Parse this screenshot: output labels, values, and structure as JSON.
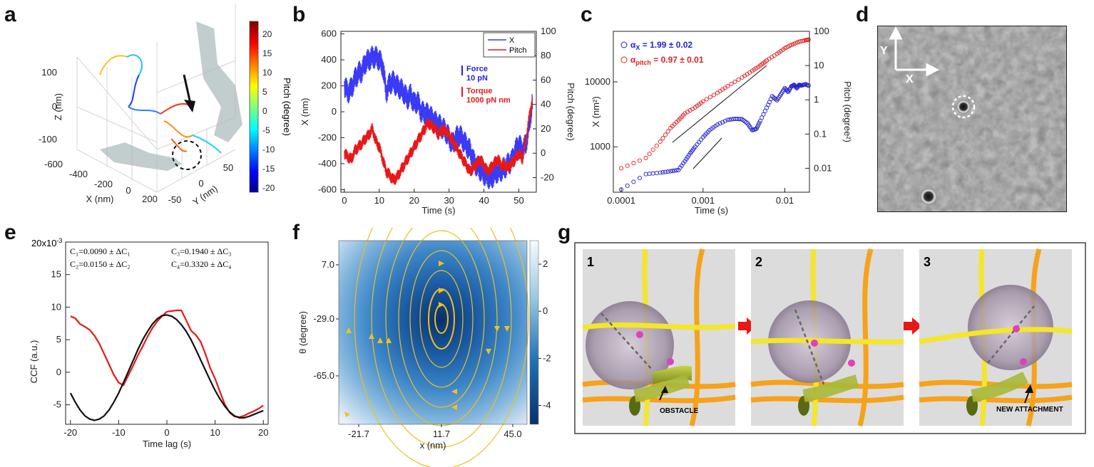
{
  "panels": {
    "a": {
      "letter": "a",
      "colorbar": {
        "ticks": [
          "20",
          "15",
          "10",
          "5",
          "0",
          "-5",
          "-10",
          "-15",
          "-20"
        ],
        "label": "Pitch (degree)"
      },
      "axes": {
        "z_label": "Z (nm)",
        "z_ticks": [
          "100",
          "0",
          "-100"
        ],
        "x_label": "X (nm)",
        "x_ticks": [
          "-600",
          "-400",
          "-200",
          "0",
          "200"
        ],
        "y_label": "Y (nm)",
        "y_ticks": [
          "-50",
          "0",
          "50"
        ]
      }
    },
    "b": {
      "letter": "b",
      "legend": [
        "X",
        "Pitch"
      ],
      "scale_force": [
        "Force",
        "10 pN"
      ],
      "scale_torque": [
        "Torque",
        "1000 pN nm"
      ]
    },
    "c": {
      "letter": "c",
      "alpha_x": {
        "symbol": "α",
        "sub": "X",
        "text": " = 1.99 ± 0.02"
      },
      "alpha_pitch": {
        "symbol": "α",
        "sub": "pitch",
        "text": " = 0.97 ± 0.01"
      }
    },
    "d": {
      "letter": "d",
      "axis_y": "Y",
      "axis_x": "X"
    },
    "e": {
      "letter": "e",
      "scale_note": "20x10",
      "scale_exp": "-3",
      "coefs": [
        "C₁=0.0090 ± ΔC₁",
        "C₃=0.1940 ± ΔC₃",
        "C₂=0.0150 ± ΔC₂",
        "C₄=0.3320 ± ΔC₄"
      ]
    },
    "f": {
      "letter": "f",
      "colorbar_ticks": [
        "2",
        "0",
        "-2",
        "-4"
      ]
    },
    "g": {
      "letter": "g",
      "steps": [
        "1",
        "2",
        "3"
      ],
      "labels": {
        "obstacle": "OBSTACLE",
        "new_attachment": "NEW ATTACHMENT"
      }
    }
  },
  "colors": {
    "blue": "#3b3bf5",
    "red": "#e81818",
    "yellow": "#f4e62a",
    "orange": "#f6a21a"
  },
  "chart_data": [
    {
      "panel": "b",
      "type": "line",
      "title": "",
      "xlabel": "Time (s)",
      "ylabel": "X (nm)",
      "ylabel_right": "Pitch (degree)",
      "xlim": [
        -1,
        55
      ],
      "ylim": [
        -620,
        620
      ],
      "ylim_right": [
        -32,
        100
      ],
      "x_ticks": [
        0,
        10,
        20,
        30,
        40,
        50
      ],
      "y_ticks": [
        -600,
        -400,
        -200,
        0,
        200,
        400,
        600
      ],
      "y_ticks_right": [
        -20,
        0,
        20,
        40,
        60,
        80,
        100
      ],
      "series": [
        {
          "name": "X",
          "axis": "left",
          "color": "#3b3bf5",
          "x": [
            0,
            1,
            2,
            3,
            4,
            5,
            6,
            7,
            8,
            9,
            10,
            11,
            12,
            13,
            14,
            15,
            16,
            17,
            18,
            19,
            20,
            21,
            22,
            23,
            24,
            25,
            26,
            27,
            28,
            29,
            30,
            31,
            32,
            33,
            34,
            35,
            36,
            37,
            38,
            39,
            40,
            41,
            42,
            43,
            44,
            45,
            46,
            47,
            48,
            49,
            50,
            51,
            52,
            53,
            54
          ],
          "values": [
            200,
            150,
            180,
            250,
            300,
            310,
            380,
            400,
            420,
            420,
            400,
            350,
            150,
            220,
            230,
            200,
            180,
            150,
            100,
            130,
            60,
            80,
            0,
            -10,
            -20,
            -50,
            -80,
            -100,
            -120,
            -150,
            -200,
            -250,
            -200,
            -180,
            -220,
            -260,
            -300,
            -380,
            -420,
            -450,
            -480,
            -500,
            -520,
            -480,
            -460,
            -450,
            -430,
            -400,
            -380,
            -300,
            -250,
            -300,
            -250,
            -100,
            100
          ],
          "band": 90
        },
        {
          "name": "Pitch",
          "axis": "right",
          "color": "#e81818",
          "x": [
            0,
            1,
            2,
            3,
            4,
            5,
            6,
            7,
            8,
            9,
            10,
            11,
            12,
            13,
            14,
            15,
            16,
            17,
            18,
            19,
            20,
            21,
            22,
            23,
            24,
            25,
            26,
            27,
            28,
            29,
            30,
            31,
            32,
            33,
            34,
            35,
            36,
            37,
            38,
            39,
            40,
            41,
            42,
            43,
            44,
            45,
            46,
            47,
            48,
            49,
            50,
            51,
            52,
            53,
            54
          ],
          "values": [
            0,
            -3,
            -5,
            2,
            5,
            8,
            12,
            15,
            20,
            10,
            5,
            -5,
            -15,
            -18,
            -22,
            -20,
            -15,
            -10,
            -5,
            0,
            5,
            10,
            15,
            20,
            25,
            22,
            20,
            15,
            20,
            18,
            15,
            10,
            5,
            0,
            -5,
            -10,
            -15,
            -12,
            -8,
            -5,
            -10,
            -15,
            -12,
            -8,
            -5,
            -10,
            -10,
            -12,
            -8,
            -5,
            0,
            -5,
            10,
            30,
            45
          ],
          "band": 5
        }
      ]
    },
    {
      "panel": "c",
      "type": "scatter",
      "xlabel": "Time (s)",
      "ylabel": "X (nm²)",
      "ylabel_right": "Pitch (degree²)",
      "xscale": "log",
      "yscale": "log",
      "xlim": [
        8e-05,
        0.02
      ],
      "ylim": [
        200,
        60000
      ],
      "ylim_right": [
        0.002,
        100
      ],
      "x_ticks": [
        "0.0001",
        "0.001",
        "0.01"
      ],
      "y_ticks": [
        "1000",
        "10000"
      ],
      "y_ticks_right": [
        "0.01",
        "0.1",
        "1",
        "10",
        "100"
      ],
      "series": [
        {
          "name": "X",
          "axis": "left",
          "color": "#2323c8",
          "x": [
            0.0001,
            0.0002,
            0.0003,
            0.0004,
            0.0005,
            0.0006,
            0.0007,
            0.0008,
            0.001,
            0.0012,
            0.0015,
            0.002,
            0.0025,
            0.003,
            0.0035,
            0.004,
            0.0045,
            0.005,
            0.006,
            0.007,
            0.008,
            0.009,
            0.01,
            0.011,
            0.012,
            0.013,
            0.014,
            0.015,
            0.016,
            0.018,
            0.02
          ],
          "values": [
            220,
            380,
            400,
            420,
            440,
            600,
            800,
            1000,
            1400,
            1800,
            2200,
            2600,
            2700,
            2650,
            2300,
            1800,
            1900,
            2500,
            4000,
            6000,
            5200,
            6500,
            8000,
            7000,
            8500,
            9000,
            8000,
            9000,
            8800,
            9200,
            8600
          ]
        },
        {
          "name": "Pitch",
          "axis": "right",
          "color": "#e02020",
          "x": [
            0.0001,
            0.0002,
            0.0003,
            0.0004,
            0.0005,
            0.0006,
            0.0008,
            0.001,
            0.0015,
            0.002,
            0.003,
            0.004,
            0.005,
            0.006,
            0.008,
            0.01,
            0.012,
            0.015,
            0.018,
            0.02
          ],
          "values": [
            0.01,
            0.02,
            0.06,
            0.15,
            0.25,
            0.4,
            0.6,
            0.9,
            1.6,
            2.5,
            4.5,
            7,
            10,
            14,
            22,
            32,
            40,
            50,
            55,
            58
          ]
        }
      ]
    },
    {
      "panel": "e",
      "type": "line",
      "xlabel": "Time lag (s)",
      "ylabel": "CCF (a.u.)",
      "xlim": [
        -21,
        21
      ],
      "ylim": [
        -8,
        20
      ],
      "x_ticks": [
        -20,
        -10,
        0,
        10,
        20
      ],
      "y_ticks": [
        -5,
        0,
        5,
        10,
        15
      ],
      "series": [
        {
          "name": "data",
          "color": "#e81818",
          "x": [
            -20,
            -19,
            -18,
            -17,
            -16,
            -15,
            -14,
            -13,
            -12,
            -11,
            -10,
            -9,
            -8,
            -7,
            -6,
            -5,
            -4,
            -3,
            -2,
            -1,
            0,
            1,
            2,
            3,
            4,
            5,
            6,
            7,
            8,
            9,
            10,
            11,
            12,
            13,
            14,
            15,
            16,
            17,
            18,
            19,
            20
          ],
          "values": [
            8.6,
            8.3,
            7.4,
            7,
            6.5,
            5.6,
            4.4,
            2.8,
            1.2,
            -0.4,
            -1.6,
            -2,
            -0.5,
            1,
            2.6,
            4,
            5.5,
            6.8,
            7.8,
            8.6,
            9.3,
            9.4,
            9.5,
            9.5,
            8,
            6.4,
            5.7,
            4.7,
            2.8,
            0.6,
            -1,
            -3,
            -4.9,
            -6.2,
            -6.8,
            -6.9,
            -6.7,
            -6.3,
            -6,
            -5.6,
            -5.1
          ]
        },
        {
          "name": "fit",
          "color": "#111111",
          "x": [
            -20,
            -19,
            -18,
            -17,
            -16,
            -15,
            -14,
            -13,
            -12,
            -11,
            -10,
            -9,
            -8,
            -7,
            -6,
            -5,
            -4,
            -3,
            -2,
            -1,
            0,
            1,
            2,
            3,
            4,
            5,
            6,
            7,
            8,
            9,
            10,
            11,
            12,
            13,
            14,
            15,
            16,
            17,
            18,
            19,
            20
          ],
          "values": [
            -3.2,
            -4.6,
            -5.8,
            -6.7,
            -7.2,
            -7.4,
            -7.2,
            -6.7,
            -5.8,
            -4.6,
            -3.2,
            -1.6,
            0.1,
            1.8,
            3.5,
            5,
            6.3,
            7.4,
            8.2,
            8.7,
            8.8,
            8.6,
            8.1,
            7.3,
            6.3,
            5,
            3.5,
            1.9,
            0.3,
            -1.3,
            -2.8,
            -4.1,
            -5.2,
            -6.1,
            -6.7,
            -7,
            -7,
            -6.8,
            -6.5,
            -6.2,
            -5.9
          ]
        }
      ]
    },
    {
      "panel": "f",
      "type": "heatmap",
      "xlabel": "x (nm)",
      "ylabel": "θ (degree)",
      "x_ticks": [
        "-21.7",
        "11.7",
        "45.0"
      ],
      "y_ticks": [
        "7.0",
        "-29.0",
        "-65.0"
      ],
      "colorbar_range": [
        -4.8,
        3
      ],
      "center": {
        "x": 11.7,
        "theta": -29.0
      }
    }
  ]
}
